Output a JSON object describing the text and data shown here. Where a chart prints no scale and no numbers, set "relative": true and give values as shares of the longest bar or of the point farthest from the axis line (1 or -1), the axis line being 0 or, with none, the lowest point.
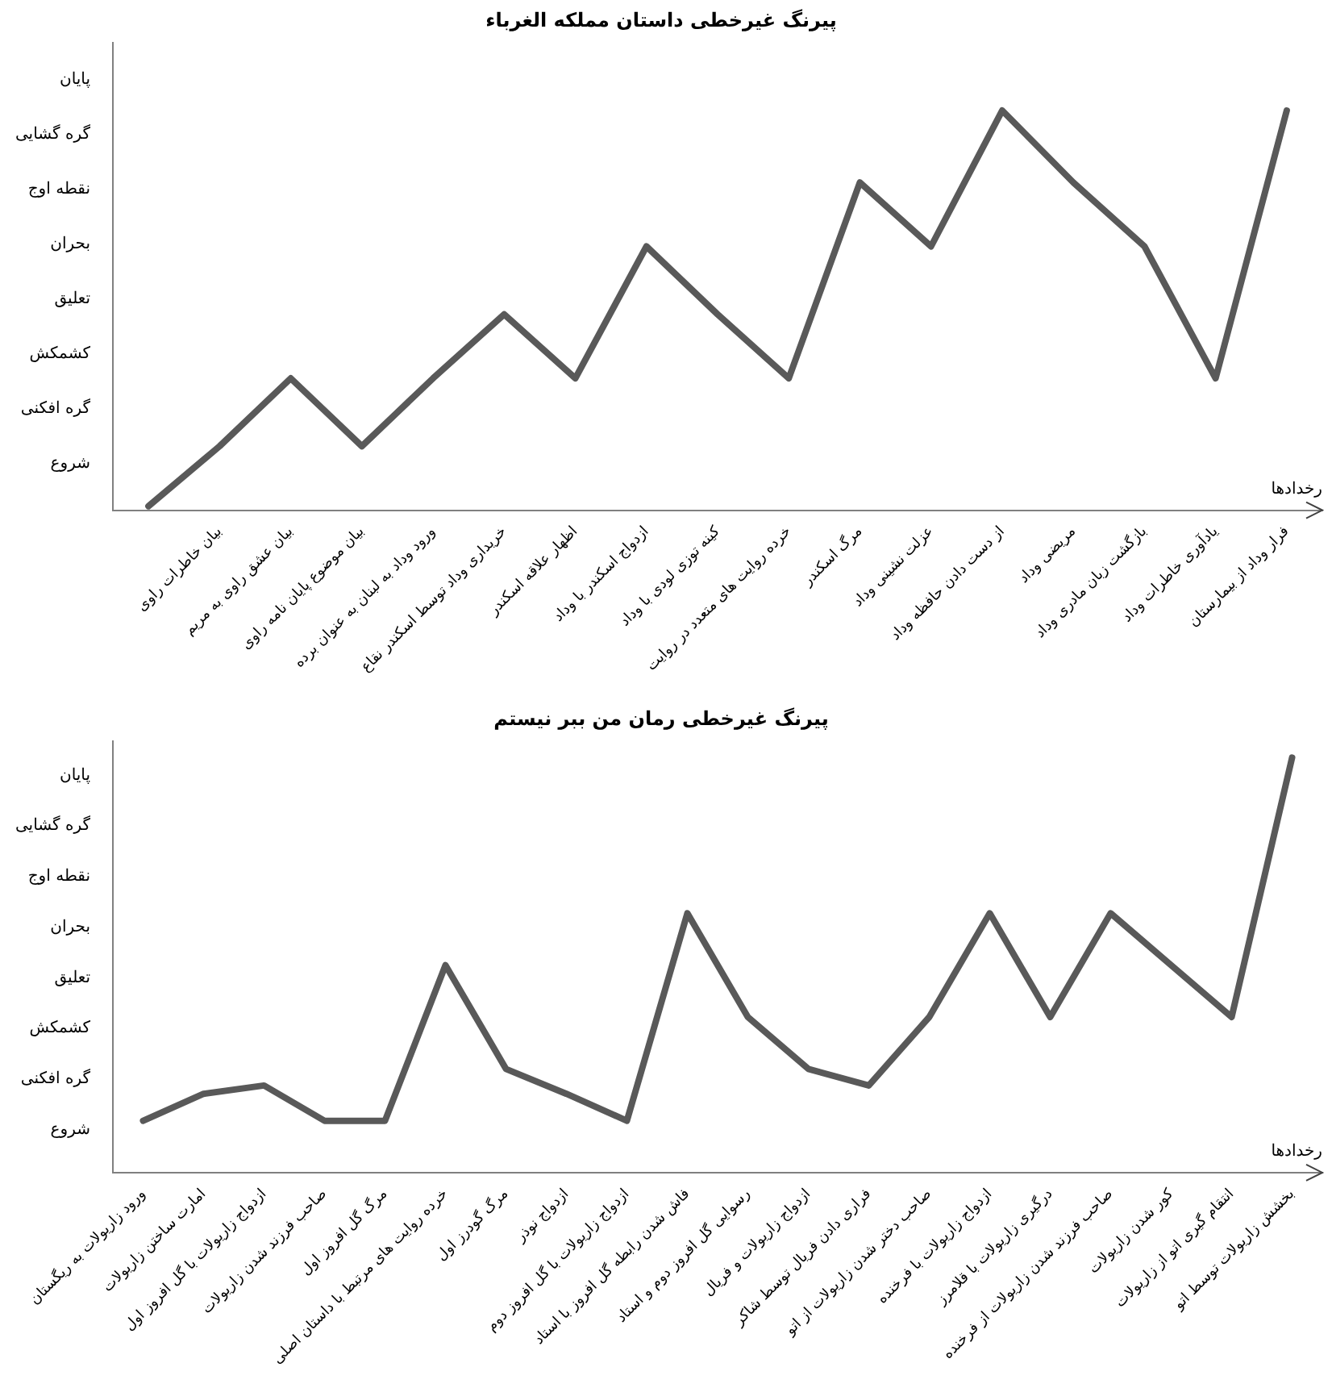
{
  "chart_data": [
    {
      "type": "line",
      "title": "پیرنگ غیرخطی داستان مملکه الغرباء",
      "xlabel": "رخدادها",
      "relative": true,
      "categories": [
        null,
        "بیان خاطرات راوی",
        "بیان عشق راوی به مریم",
        "بیان موضوع پایان نامه راوی",
        "ورود وداد به لبنان به عنوان برده",
        "خریداری وداد توسط اسکندر نقاع",
        "اظهار علاقه اسکندر",
        "ازدواج اسکندر با وداد",
        "کینه توزی لودی با وداد",
        "خرده روایت های متعدد در روایت",
        "مرگ اسکندر",
        "عزلت نشینی وداد",
        "از دست دادن حافظه وداد",
        "مریضی وداد",
        "بازگشت زبان مادری وداد",
        "یادآوری خاطرات وداد",
        "فرار وداد از بیمارستان"
      ],
      "series": [
        {
          "color": "#595959",
          "values": [
            0.01,
            0.16,
            0.33,
            0.16,
            0.33,
            0.49,
            0.33,
            0.66,
            0.49,
            0.33,
            0.82,
            0.66,
            1,
            0.82,
            0.66,
            0.33,
            1
          ]
        }
      ],
      "annotations": [
        "شروع",
        "گره افکنی",
        "کشمکش",
        "تعلیق",
        "بحران",
        "نقطه اوج",
        "گره گشایی",
        "پایان"
      ],
      "marker": "none",
      "line_style": "solid"
    },
    {
      "type": "line",
      "title": "پیرنگ غیرخطی رمان من ببر نیستم",
      "xlabel": "رخدادها",
      "relative": true,
      "categories": [
        "ورود زاریولات به ریگستان",
        "امارت ساختن زاریولات",
        "ازدواج زاریولات با گل افروز اول",
        "صاحب فرزند شدن زاریولات",
        "مرگ گل افروز اول",
        "خرده روایت های مرتبط با داستان اصلی",
        "مرگ گودرز اول",
        "ازدواج نوذر",
        "ازدواج زاریولات با گل افروز دوم",
        "فاش شدن رابطه گل افروز با استاد",
        "رسوایی گل افروز دوم و استاد",
        "ازدواج زاریولات و فریال",
        "فراری دادن فریال توسط شاکر",
        "صاحب دختر شدن زاریولات از اتو",
        "ازدواج زاریولات با فرخنده",
        "درگیری زاریولات با قلامرز",
        "صاحب فرزند شدن زاریولات از فرخنده",
        "کور شدن زاریولات",
        "انتقام گیری اتو از زاریولات",
        "بخشش زاریولات توسط اتو"
      ],
      "series": [
        {
          "color": "#595959",
          "values": [
            0.125,
            0.19,
            0.21,
            0.125,
            0.125,
            0.5,
            0.25,
            0.19,
            0.125,
            0.625,
            0.375,
            0.25,
            0.21,
            0.375,
            0.625,
            0.375,
            0.625,
            0.5,
            0.375,
            1
          ]
        }
      ],
      "annotations": [
        "شروع",
        "گره افکنی",
        "کشمکش",
        "تعلیق",
        "بحران",
        "نقطه اوج",
        "گره گشایی",
        "پایان"
      ],
      "marker": "none",
      "line_style": "solid"
    }
  ]
}
